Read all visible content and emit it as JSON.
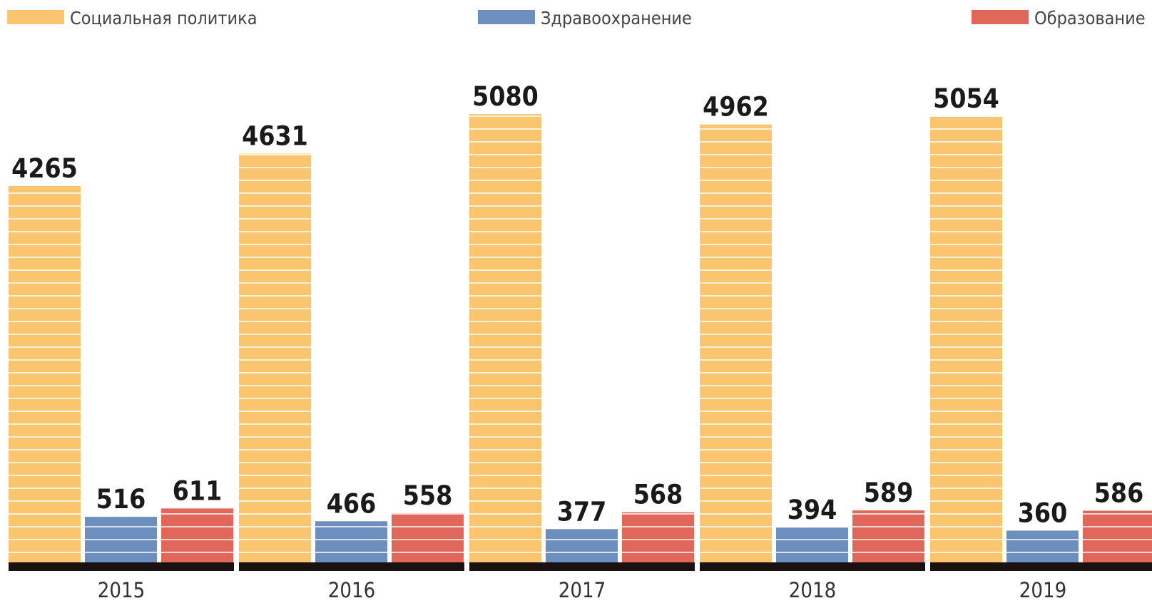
{
  "chart_data": {
    "type": "bar",
    "categories": [
      "2015",
      "2016",
      "2017",
      "2018",
      "2019"
    ],
    "series": [
      {
        "name": "Социальная политика",
        "color": "#fbc56f",
        "values": [
          4265,
          4631,
          5080,
          4962,
          5054
        ]
      },
      {
        "name": "Здравоохранение",
        "color": "#6d8fc0",
        "values": [
          516,
          466,
          377,
          394,
          360
        ]
      },
      {
        "name": "Образование",
        "color": "#e0675a",
        "values": [
          611,
          558,
          568,
          589,
          586
        ]
      }
    ]
  }
}
